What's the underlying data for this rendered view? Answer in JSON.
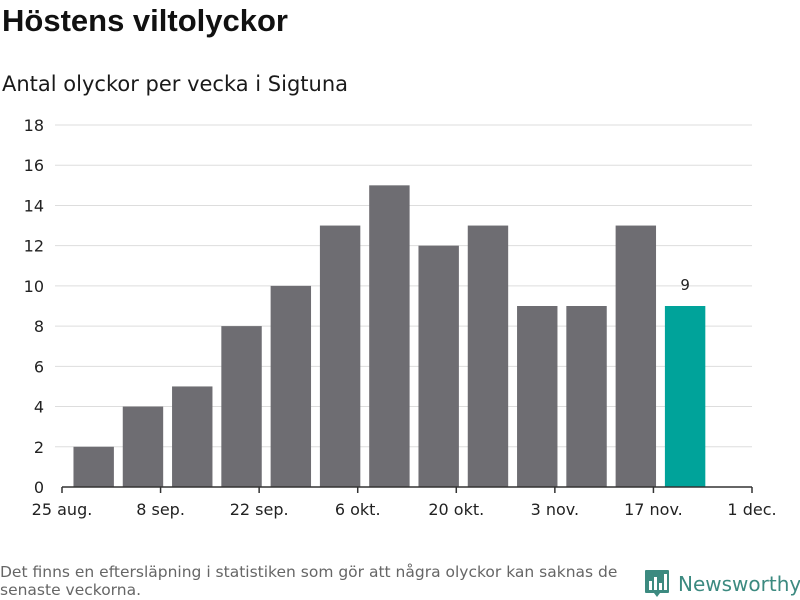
{
  "header": {
    "title": "Höstens viltolyckor",
    "subtitle": "Antal olyckor per vecka i Sigtuna"
  },
  "footer": {
    "note": "Det finns en eftersläpning i statistiken som gör att några olyckor kan saknas de senaste veckorna.",
    "brand_name": "Newsworthy",
    "brand_icon": "bar-chart-logo-icon"
  },
  "colors": {
    "bar": "#6e6d72",
    "highlight": "#00a39a",
    "grid": "#dddddd",
    "axis": "#333333",
    "brand": "#3c8a80"
  },
  "chart_data": {
    "type": "bar",
    "title": "Höstens viltolyckor",
    "subtitle": "Antal olyckor per vecka i Sigtuna",
    "xlabel": "",
    "ylabel": "",
    "ylim": [
      0,
      18
    ],
    "yticks": [
      0,
      2,
      4,
      6,
      8,
      10,
      12,
      14,
      16,
      18
    ],
    "x_tick_labels": [
      "25 aug.",
      "8 sep.",
      "22 sep.",
      "6 okt.",
      "20 okt.",
      "3 nov.",
      "17 nov.",
      "1 dec."
    ],
    "x_ticks": [
      "2019-08-25",
      "2019-09-08",
      "2019-09-22",
      "2019-10-06",
      "2019-10-20",
      "2019-11-03",
      "2019-11-17",
      "2019-12-01"
    ],
    "x_range": [
      "2019-08-25",
      "2019-12-01"
    ],
    "grid": true,
    "legend": "none",
    "series": [
      {
        "x": [
          "2019-08-26",
          "2019-09-02",
          "2019-09-09",
          "2019-09-16",
          "2019-09-23",
          "2019-09-30",
          "2019-10-07",
          "2019-10-14",
          "2019-10-21",
          "2019-10-28",
          "2019-11-04",
          "2019-11-11",
          "2019-11-18"
        ],
        "values": [
          2,
          4,
          5,
          8,
          10,
          13,
          15,
          12,
          13,
          9,
          9,
          13,
          9
        ],
        "highlight_index": 12,
        "data_labels": {
          "12": "9"
        }
      }
    ]
  }
}
